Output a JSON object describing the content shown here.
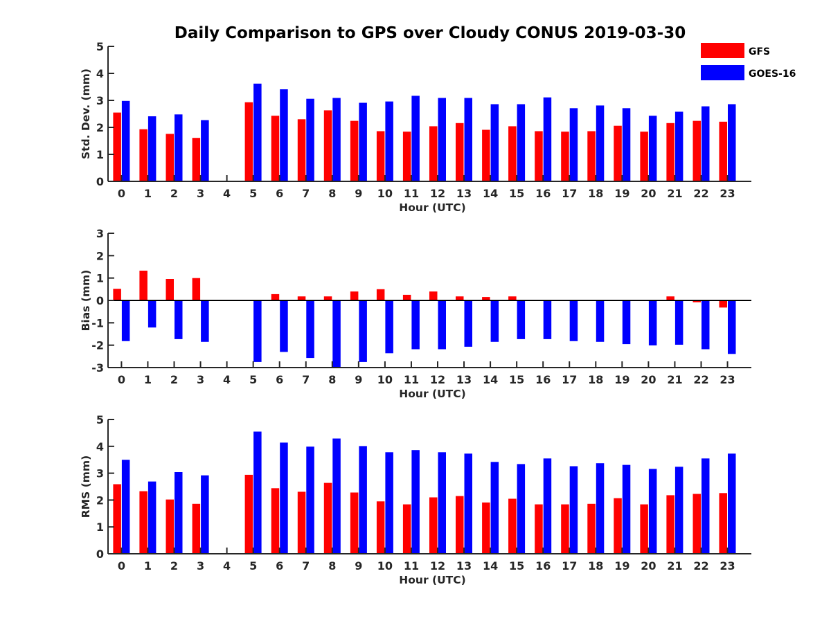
{
  "title": "Daily Comparison to GPS over Cloudy CONUS 2019-03-30",
  "legend": [
    {
      "name": "GFS",
      "color": "#ff0000"
    },
    {
      "name": "GOES-16",
      "color": "#0000ff"
    }
  ],
  "chart_data": [
    {
      "type": "bar",
      "xlabel": "Hour (UTC)",
      "ylabel": "Std. Dev. (mm)",
      "ylim": [
        0,
        5
      ],
      "yticks": [
        0,
        1,
        2,
        3,
        4,
        5
      ],
      "legend_position": "top-right",
      "grid": false,
      "categories": [
        "0",
        "1",
        "2",
        "3",
        "4",
        "5",
        "6",
        "7",
        "8",
        "9",
        "10",
        "11",
        "12",
        "13",
        "14",
        "15",
        "16",
        "17",
        "18",
        "19",
        "20",
        "21",
        "22",
        "23"
      ],
      "series": [
        {
          "name": "GFS",
          "color": "#ff0000",
          "values": [
            2.55,
            1.93,
            1.76,
            1.61,
            null,
            2.93,
            2.43,
            2.3,
            2.63,
            2.24,
            1.86,
            1.84,
            2.04,
            2.16,
            1.91,
            2.04,
            1.86,
            1.84,
            1.86,
            2.06,
            1.84,
            2.16,
            2.24,
            2.21
          ]
        },
        {
          "name": "GOES-16",
          "color": "#0000ff",
          "values": [
            2.98,
            2.41,
            2.48,
            2.27,
            null,
            3.62,
            3.41,
            3.06,
            3.09,
            2.91,
            2.96,
            3.17,
            3.09,
            3.09,
            2.86,
            2.86,
            3.11,
            2.71,
            2.81,
            2.71,
            2.43,
            2.58,
            2.78,
            2.86
          ]
        }
      ]
    },
    {
      "type": "bar",
      "xlabel": "Hour (UTC)",
      "ylabel": "Bias (mm)",
      "ylim": [
        -3,
        3
      ],
      "yticks": [
        -3,
        -2,
        -1,
        0,
        1,
        2,
        3
      ],
      "grid": false,
      "categories": [
        "0",
        "1",
        "2",
        "3",
        "4",
        "5",
        "6",
        "7",
        "8",
        "9",
        "10",
        "11",
        "12",
        "13",
        "14",
        "15",
        "16",
        "17",
        "18",
        "19",
        "20",
        "21",
        "22",
        "23"
      ],
      "series": [
        {
          "name": "GFS",
          "color": "#ff0000",
          "values": [
            0.52,
            1.33,
            0.96,
            1.0,
            null,
            0.02,
            0.28,
            0.18,
            0.18,
            0.4,
            0.5,
            0.25,
            0.4,
            0.18,
            0.15,
            0.18,
            0.03,
            -0.02,
            -0.02,
            -0.02,
            0.0,
            0.18,
            -0.08,
            -0.32
          ]
        },
        {
          "name": "GOES-16",
          "color": "#0000ff",
          "values": [
            -1.82,
            -1.21,
            -1.73,
            -1.85,
            null,
            -2.75,
            -2.3,
            -2.57,
            -3.0,
            -2.75,
            -2.36,
            -2.18,
            -2.18,
            -2.07,
            -1.85,
            -1.73,
            -1.73,
            -1.82,
            -1.85,
            -1.95,
            -2.01,
            -1.98,
            -2.18,
            -2.39
          ]
        }
      ]
    },
    {
      "type": "bar",
      "xlabel": "Hour (UTC)",
      "ylabel": "RMS (mm)",
      "ylim": [
        0,
        5
      ],
      "yticks": [
        0,
        1,
        2,
        3,
        4,
        5
      ],
      "grid": false,
      "categories": [
        "0",
        "1",
        "2",
        "3",
        "4",
        "5",
        "6",
        "7",
        "8",
        "9",
        "10",
        "11",
        "12",
        "13",
        "14",
        "15",
        "16",
        "17",
        "18",
        "19",
        "20",
        "21",
        "22",
        "23"
      ],
      "series": [
        {
          "name": "GFS",
          "color": "#ff0000",
          "values": [
            2.59,
            2.33,
            2.02,
            1.86,
            null,
            2.94,
            2.44,
            2.31,
            2.64,
            2.28,
            1.95,
            1.84,
            2.1,
            2.15,
            1.91,
            2.05,
            1.84,
            1.84,
            1.86,
            2.07,
            1.84,
            2.18,
            2.23,
            2.26
          ]
        },
        {
          "name": "GOES-16",
          "color": "#0000ff",
          "values": [
            3.5,
            2.69,
            3.04,
            2.92,
            null,
            4.55,
            4.14,
            3.99,
            4.29,
            4.01,
            3.78,
            3.86,
            3.78,
            3.73,
            3.42,
            3.34,
            3.55,
            3.26,
            3.37,
            3.31,
            3.16,
            3.24,
            3.55,
            3.73
          ]
        }
      ]
    }
  ]
}
